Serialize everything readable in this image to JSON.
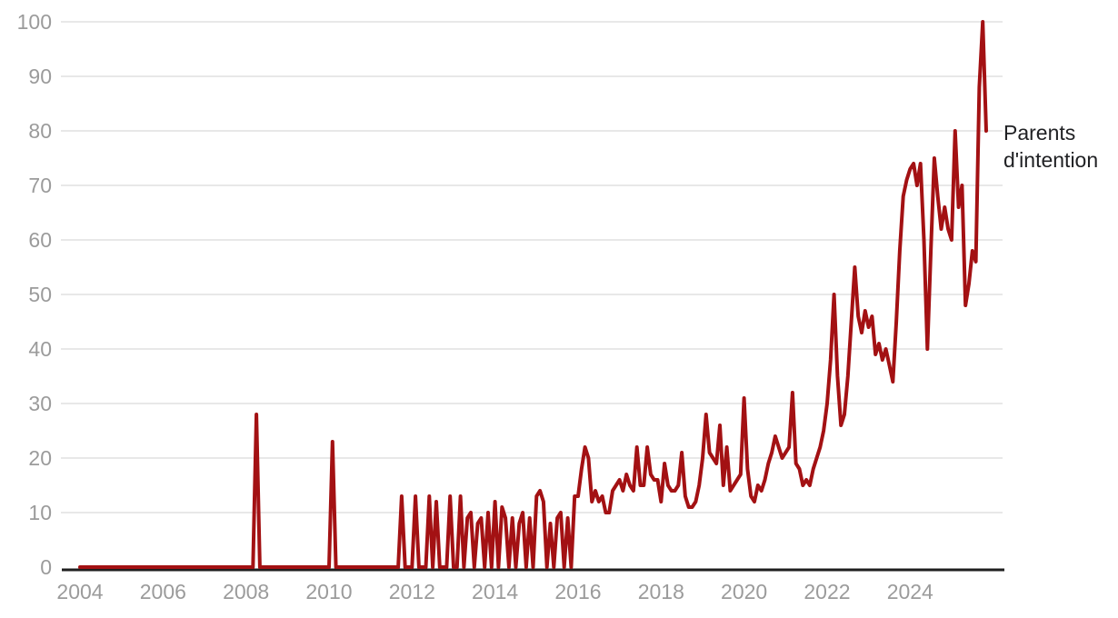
{
  "chart": {
    "series_label_lines": [
      "Parents",
      "d'intention"
    ]
  },
  "chart_data": {
    "type": "line",
    "title": "",
    "xlabel": "",
    "ylabel": "",
    "frequency": "monthly",
    "x_start": "2004-01",
    "x_end": "2025-11",
    "ylim": [
      0,
      100
    ],
    "grid": "horizontal",
    "legend_position": "right-of-last-point",
    "y_ticks": [
      0,
      10,
      20,
      30,
      40,
      50,
      60,
      70,
      80,
      90,
      100
    ],
    "x_tick_labels": [
      "2004",
      "2006",
      "2008",
      "2010",
      "2012",
      "2014",
      "2016",
      "2018",
      "2020",
      "2022",
      "2024"
    ],
    "colors": {
      "line": "#a31113",
      "gridline": "#e8e8e8",
      "axis": "#1f1f1f",
      "tick_text": "#9b9b9b",
      "series_label_text": "#202124",
      "background": "#ffffff"
    },
    "series": [
      {
        "name": "Parents d'intention",
        "color": "#a31113",
        "values": [
          0,
          0,
          0,
          0,
          0,
          0,
          0,
          0,
          0,
          0,
          0,
          0,
          0,
          0,
          0,
          0,
          0,
          0,
          0,
          0,
          0,
          0,
          0,
          0,
          0,
          0,
          0,
          0,
          0,
          0,
          0,
          0,
          0,
          0,
          0,
          0,
          0,
          0,
          0,
          0,
          0,
          0,
          0,
          0,
          0,
          0,
          0,
          0,
          0,
          0,
          0,
          28,
          0,
          0,
          0,
          0,
          0,
          0,
          0,
          0,
          0,
          0,
          0,
          0,
          0,
          0,
          0,
          0,
          0,
          0,
          0,
          0,
          0,
          23,
          0,
          0,
          0,
          0,
          0,
          0,
          0,
          0,
          0,
          0,
          0,
          0,
          0,
          0,
          0,
          0,
          0,
          0,
          0,
          13,
          0,
          0,
          0,
          13,
          0,
          0,
          0,
          13,
          0,
          12,
          0,
          0,
          0,
          13,
          0,
          0,
          13,
          0,
          9,
          10,
          0,
          8,
          9,
          0,
          10,
          0,
          12,
          0,
          11,
          9,
          0,
          9,
          0,
          8,
          10,
          0,
          9,
          0,
          13,
          14,
          12,
          0,
          8,
          0,
          9,
          10,
          0,
          9,
          0,
          13,
          13,
          18,
          22,
          20,
          12,
          14,
          12,
          13,
          10,
          10,
          14,
          15,
          16,
          14,
          17,
          15,
          14,
          22,
          15,
          15,
          22,
          17,
          16,
          16,
          12,
          19,
          15,
          14,
          14,
          15,
          21,
          13,
          11,
          11,
          12,
          15,
          20,
          28,
          21,
          20,
          19,
          26,
          15,
          22,
          14,
          15,
          16,
          17,
          31,
          18,
          13,
          12,
          15,
          14,
          16,
          19,
          21,
          24,
          22,
          20,
          21,
          22,
          32,
          19,
          18,
          15,
          16,
          15,
          18,
          20,
          22,
          25,
          30,
          38,
          50,
          35,
          26,
          28,
          35,
          45,
          55,
          46,
          43,
          47,
          44,
          46,
          39,
          41,
          38,
          40,
          37,
          34,
          45,
          58,
          68,
          71,
          73,
          74,
          70,
          74,
          60,
          40,
          58,
          75,
          68,
          62,
          66,
          62,
          60,
          80,
          66,
          70,
          48,
          52,
          58,
          56,
          88,
          100,
          80
        ]
      }
    ]
  }
}
